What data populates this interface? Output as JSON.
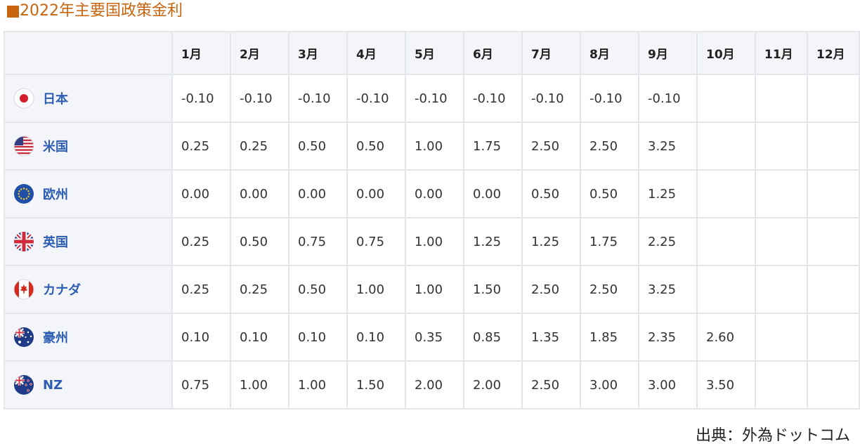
{
  "title": "2022年主要国政策金利",
  "months": [
    "1月",
    "2月",
    "3月",
    "4月",
    "5月",
    "6月",
    "7月",
    "8月",
    "9月",
    "10月",
    "11月",
    "12月"
  ],
  "rows": [
    {
      "name": "日本",
      "flag": "japan-flag-icon",
      "values": [
        "-0.10",
        "-0.10",
        "-0.10",
        "-0.10",
        "-0.10",
        "-0.10",
        "-0.10",
        "-0.10",
        "-0.10",
        "",
        "",
        ""
      ]
    },
    {
      "name": "米国",
      "flag": "usa-flag-icon",
      "values": [
        "0.25",
        "0.25",
        "0.50",
        "0.50",
        "1.00",
        "1.75",
        "2.50",
        "2.50",
        "3.25",
        "",
        "",
        ""
      ]
    },
    {
      "name": "欧州",
      "flag": "eu-flag-icon",
      "values": [
        "0.00",
        "0.00",
        "0.00",
        "0.00",
        "0.00",
        "0.00",
        "0.50",
        "0.50",
        "1.25",
        "",
        "",
        ""
      ]
    },
    {
      "name": "英国",
      "flag": "uk-flag-icon",
      "values": [
        "0.25",
        "0.50",
        "0.75",
        "0.75",
        "1.00",
        "1.25",
        "1.25",
        "1.75",
        "2.25",
        "",
        "",
        ""
      ]
    },
    {
      "name": "カナダ",
      "flag": "canada-flag-icon",
      "values": [
        "0.25",
        "0.25",
        "0.50",
        "1.00",
        "1.00",
        "1.50",
        "2.50",
        "2.50",
        "3.25",
        "",
        "",
        ""
      ]
    },
    {
      "name": "豪州",
      "flag": "australia-flag-icon",
      "values": [
        "0.10",
        "0.10",
        "0.10",
        "0.10",
        "0.35",
        "0.85",
        "1.35",
        "1.85",
        "2.35",
        "2.60",
        "",
        ""
      ]
    },
    {
      "name": "NZ",
      "flag": "nz-flag-icon",
      "values": [
        "0.75",
        "1.00",
        "1.00",
        "1.50",
        "2.00",
        "2.00",
        "2.50",
        "3.00",
        "3.00",
        "3.50",
        "",
        ""
      ]
    }
  ],
  "source": "出典：外為ドットコム",
  "colors": {
    "title": "#c8650f",
    "country_link": "#2d5eb3",
    "header_bg": "#f3f5f8",
    "border": "#e3e6ea"
  }
}
